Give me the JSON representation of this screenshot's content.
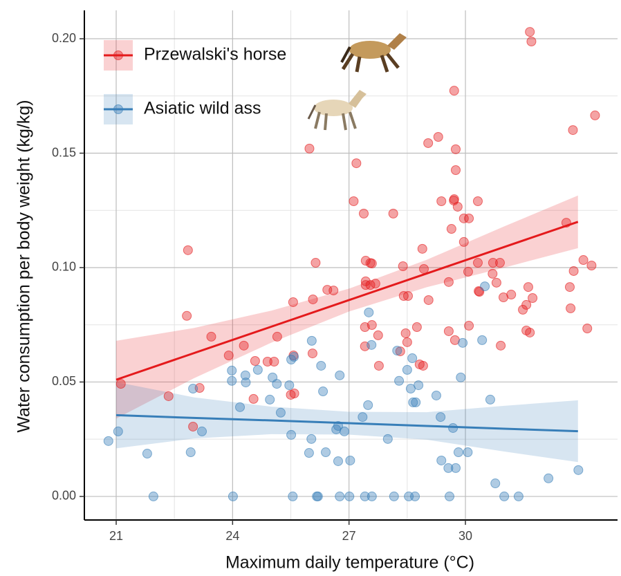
{
  "chart_data": {
    "type": "scatter",
    "x_label": "Maximum daily temperature (°C)",
    "y_label": "Water consumption per body weight (kg/kg)",
    "xlim": [
      20.18,
      33.92
    ],
    "ylim": [
      -0.0103,
      0.2124
    ],
    "xticks": [
      21,
      24,
      27,
      30
    ],
    "yticks": [
      {
        "value": 0,
        "label": "0.00"
      },
      {
        "value": 0.05,
        "label": "0.05"
      },
      {
        "value": 0.1,
        "label": "0.10"
      },
      {
        "value": 0.15,
        "label": "0.15"
      },
      {
        "value": 0.2,
        "label": "0.20"
      }
    ],
    "grid": true,
    "legend": "top-left",
    "series": [
      {
        "name": "Przewalski's horse",
        "color": "#e41a1c",
        "x": [
          21.12,
          22.85,
          22.82,
          22.35,
          22.98,
          23.15,
          23.45,
          23.9,
          24.29,
          24.54,
          24.58,
          24.9,
          25.07,
          25.15,
          25.5,
          25.56,
          25.57,
          25.59,
          25.98,
          26.06,
          26.07,
          26.14,
          26.44,
          26.6,
          27.12,
          27.19,
          27.38,
          27.41,
          27.43,
          27.43,
          27.41,
          27.43,
          27.55,
          27.59,
          27.55,
          27.59,
          27.68,
          27.75,
          27.77,
          28.14,
          28.32,
          28.39,
          28.41,
          28.52,
          28.46,
          28.5,
          28.75,
          28.82,
          28.91,
          28.93,
          28.89,
          29.05,
          29.04,
          29.3,
          29.38,
          29.57,
          29.57,
          29.64,
          29.7,
          29.71,
          29.71,
          29.73,
          29.75,
          29.75,
          29.8,
          29.96,
          29.96,
          30.09,
          30.07,
          30.09,
          30.32,
          30.36,
          30.32,
          30.34,
          30.7,
          30.71,
          30.8,
          30.89,
          30.91,
          30.98,
          31.18,
          31.48,
          31.57,
          31.57,
          31.62,
          31.66,
          31.73,
          31.66,
          31.7,
          32.6,
          32.69,
          32.71,
          32.77,
          32.79,
          33.04,
          33.14,
          33.25,
          33.34
        ],
        "values": [
          0.0492,
          0.1076,
          0.0789,
          0.0438,
          0.0305,
          0.0474,
          0.0698,
          0.0616,
          0.0659,
          0.0426,
          0.0592,
          0.0589,
          0.0589,
          0.0698,
          0.0444,
          0.0849,
          0.0616,
          0.045,
          0.152,
          0.0625,
          0.0861,
          0.1021,
          0.0903,
          0.09,
          0.129,
          0.1456,
          0.1236,
          0.074,
          0.103,
          0.094,
          0.0656,
          0.0924,
          0.102,
          0.1018,
          0.0924,
          0.0749,
          0.093,
          0.0704,
          0.0571,
          0.1236,
          0.0634,
          0.1006,
          0.0876,
          0.0876,
          0.0713,
          0.0674,
          0.074,
          0.0577,
          0.0571,
          0.0994,
          0.1082,
          0.0858,
          0.1544,
          0.1571,
          0.129,
          0.0937,
          0.0722,
          0.1169,
          0.1293,
          0.1299,
          0.1773,
          0.0683,
          0.1517,
          0.1426,
          0.1266,
          0.1215,
          0.1112,
          0.1215,
          0.0982,
          0.0746,
          0.1021,
          0.0894,
          0.129,
          0.0897,
          0.0973,
          0.1021,
          0.0934,
          0.1021,
          0.0659,
          0.087,
          0.0882,
          0.0816,
          0.0837,
          0.0725,
          0.0915,
          0.0716,
          0.0867,
          0.203,
          0.1988,
          0.1196,
          0.0915,
          0.0822,
          0.1601,
          0.0985,
          0.1033,
          0.0734,
          0.1009,
          0.1665
        ],
        "fit": {
          "x": [
            21,
            23,
            25,
            27,
            29,
            31,
            32.9
          ],
          "values": [
            0.051,
            0.0626,
            0.0742,
            0.0858,
            0.0974,
            0.109,
            0.12
          ],
          "lower": [
            0.034,
            0.0516,
            0.0672,
            0.0808,
            0.0914,
            0.1,
            0.1085
          ],
          "upper": [
            0.068,
            0.0736,
            0.0812,
            0.0908,
            0.1034,
            0.118,
            0.1315
          ]
        }
      },
      {
        "name": "Asiatic wild ass",
        "color": "#377eb8",
        "x": [
          20.8,
          21.05,
          21.8,
          21.96,
          22.92,
          22.98,
          23.21,
          23.98,
          23.98,
          24.01,
          24.19,
          24.33,
          24.34,
          24.65,
          24.96,
          25.03,
          25.14,
          25.24,
          25.46,
          25.51,
          25.51,
          25.55,
          25.58,
          25.97,
          26.03,
          26.04,
          26.17,
          26.2,
          26.28,
          26.33,
          26.4,
          26.67,
          26.72,
          26.72,
          26.76,
          26.76,
          26.88,
          27.03,
          27.01,
          27.35,
          27.41,
          27.49,
          27.51,
          27.58,
          27.59,
          28.0,
          28.16,
          28.24,
          28.29,
          28.5,
          28.54,
          28.59,
          28.63,
          28.65,
          28.7,
          28.72,
          28.79,
          29.25,
          29.36,
          29.38,
          29.56,
          29.59,
          29.68,
          29.75,
          29.82,
          29.88,
          29.93,
          30.06,
          30.43,
          30.5,
          30.64,
          30.77,
          31.0,
          31.37,
          32.14,
          32.91
        ],
        "values": [
          0.0242,
          0.0284,
          0.0187,
          0,
          0.0193,
          0.0471,
          0.0284,
          0.055,
          0.0505,
          0,
          0.039,
          0.0529,
          0.0498,
          0.0553,
          0.0423,
          0.052,
          0.0492,
          0.0366,
          0.0486,
          0.0269,
          0.0598,
          0,
          0.061,
          0.019,
          0.0251,
          0.068,
          0,
          0,
          0.0571,
          0.0459,
          0.0193,
          0.0293,
          0.0308,
          0.0154,
          0.0529,
          0,
          0.0284,
          0.0157,
          0,
          0.0347,
          0,
          0.0399,
          0.0804,
          0.0662,
          0,
          0.0251,
          0,
          0.0637,
          0.0505,
          0.0553,
          0,
          0.0471,
          0.0604,
          0.0411,
          0,
          0.0411,
          0.0486,
          0.0441,
          0.0347,
          0.0157,
          0.0124,
          0,
          0.0299,
          0.0124,
          0.0193,
          0.052,
          0.0671,
          0.0193,
          0.0683,
          0.0918,
          0.0423,
          0.0057,
          0,
          0,
          0.0079,
          0.0115
        ],
        "fit": {
          "x": [
            21,
            23,
            25,
            27,
            29,
            31,
            32.9
          ],
          "values": [
            0.0355,
            0.0343,
            0.0332,
            0.032,
            0.0308,
            0.0296,
            0.0285
          ],
          "lower": [
            0.021,
            0.0253,
            0.0272,
            0.027,
            0.0248,
            0.0196,
            0.015
          ],
          "upper": [
            0.05,
            0.0433,
            0.0392,
            0.037,
            0.0368,
            0.0396,
            0.042
          ]
        }
      }
    ]
  }
}
